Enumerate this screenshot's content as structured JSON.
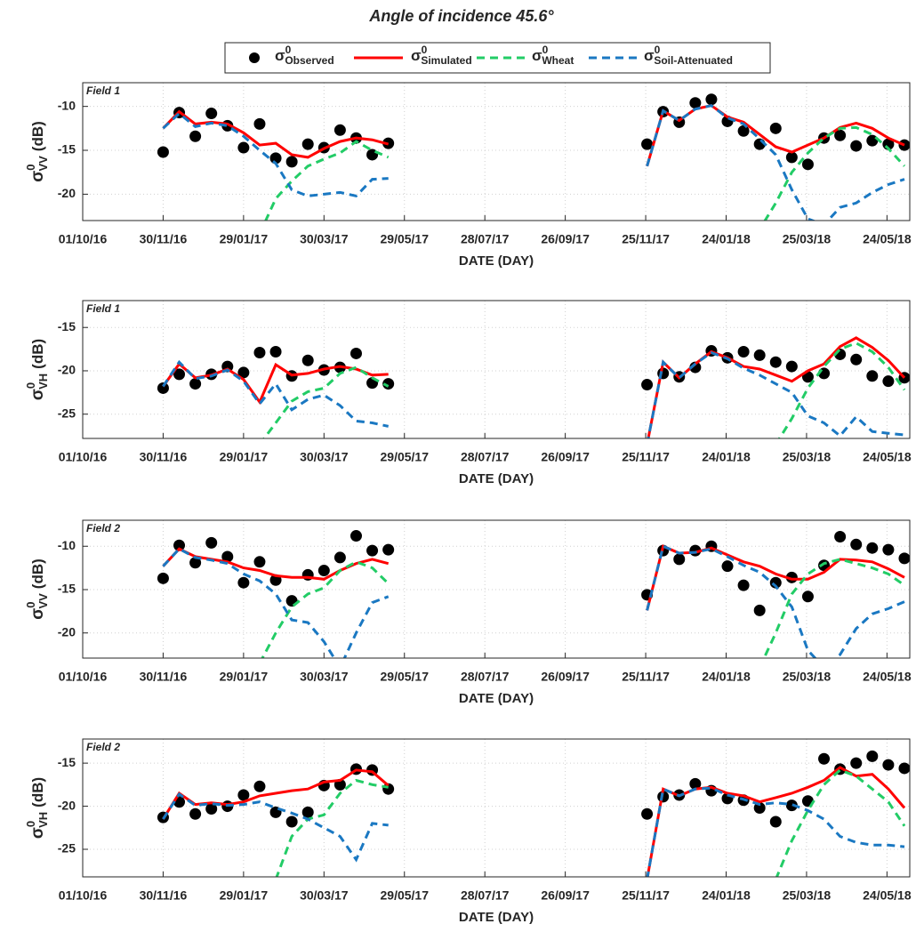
{
  "title": "Angle of incidence 45.6°",
  "symbol": {
    "base": "σ",
    "sup": "0"
  },
  "legend": [
    {
      "name": "Observed",
      "color": "#000000",
      "style": "markers"
    },
    {
      "name": "Simulated",
      "color": "#ff0000",
      "style": "solid"
    },
    {
      "name": "Wheat",
      "color": "#22cc66",
      "style": "dashed"
    },
    {
      "name": "Soil-Attenuated",
      "color": "#1a78c2",
      "style": "dashed"
    }
  ],
  "chart_data": [
    {
      "type": "line",
      "field_label": "Field 1",
      "xlabel": "DATE (DAY)",
      "ylabel": {
        "base": "σ",
        "sup": "0",
        "sub": "VV",
        "rest": "(dB)"
      },
      "grid": true,
      "xlim": [
        "2016-10-01",
        "2018-06-10"
      ],
      "xticks": [
        {
          "value": "2016-10-01",
          "label": "01/10/16"
        },
        {
          "value": "2016-11-30",
          "label": "30/11/16"
        },
        {
          "value": "2017-01-29",
          "label": "29/01/17"
        },
        {
          "value": "2017-03-30",
          "label": "30/03/17"
        },
        {
          "value": "2017-05-29",
          "label": "29/05/17"
        },
        {
          "value": "2017-07-28",
          "label": "28/07/17"
        },
        {
          "value": "2017-09-26",
          "label": "26/09/17"
        },
        {
          "value": "2017-11-25",
          "label": "25/11/17"
        },
        {
          "value": "2018-01-24",
          "label": "24/01/18"
        },
        {
          "value": "2018-03-25",
          "label": "25/03/18"
        },
        {
          "value": "2018-05-24",
          "label": "24/05/18"
        }
      ],
      "ylim": [
        -23,
        -7.3
      ],
      "yticks": [
        -20,
        -15,
        -10
      ],
      "x": [
        "2016-11-30",
        "2016-12-12",
        "2016-12-24",
        "2017-01-05",
        "2017-01-17",
        "2017-01-29",
        "2017-02-10",
        "2017-02-22",
        "2017-03-06",
        "2017-03-18",
        "2017-03-30",
        "2017-04-11",
        "2017-04-23",
        "2017-05-05",
        "2017-05-17",
        "2017-08-20",
        "2017-11-26",
        "2017-12-08",
        "2017-12-20",
        "2018-01-01",
        "2018-01-13",
        "2018-01-25",
        "2018-02-06",
        "2018-02-18",
        "2018-03-02",
        "2018-03-14",
        "2018-03-26",
        "2018-04-07",
        "2018-04-19",
        "2018-05-01",
        "2018-05-13",
        "2018-05-25",
        "2018-06-06"
      ],
      "series": [
        {
          "values": [
            -15.2,
            -10.7,
            -13.4,
            -10.8,
            -12.2,
            -14.7,
            -12.0,
            -15.9,
            -16.3,
            -14.3,
            -14.7,
            -12.7,
            -13.6,
            -15.5,
            -14.2,
            null,
            -14.3,
            -10.6,
            -11.8,
            -9.6,
            -9.2,
            -11.7,
            -12.8,
            -14.3,
            -12.5,
            -15.8,
            -16.6,
            -13.6,
            -13.3,
            -14.5,
            -13.9,
            -14.3,
            -14.4
          ]
        },
        {
          "values": [
            -12.5,
            -10.6,
            -12.0,
            -11.8,
            -12.0,
            -13.0,
            -14.4,
            -14.2,
            -15.5,
            -15.8,
            -14.8,
            -14.0,
            -13.6,
            -13.8,
            -14.3,
            null,
            -16.8,
            -10.5,
            -11.6,
            -10.3,
            -9.9,
            -11.2,
            -11.8,
            -13.2,
            -14.6,
            -15.2,
            -14.4,
            -13.6,
            -12.4,
            -11.9,
            -12.5,
            -13.6,
            -14.4
          ]
        },
        {
          "values": [
            null,
            null,
            null,
            null,
            null,
            null,
            -24.5,
            -20.5,
            -18.5,
            -16.8,
            -16.0,
            -15.3,
            -14.0,
            -15.0,
            -15.8,
            null,
            null,
            null,
            null,
            null,
            null,
            null,
            -27.0,
            -24.0,
            -21.0,
            -17.5,
            -15.3,
            -13.6,
            -12.5,
            -12.4,
            -13.2,
            -14.8,
            -16.8
          ]
        },
        {
          "values": [
            -12.5,
            -10.8,
            -12.3,
            -11.9,
            -12.2,
            -13.4,
            -15.0,
            -16.5,
            -19.5,
            -20.2,
            -20.0,
            -19.8,
            -20.2,
            -18.3,
            -18.2,
            null,
            -16.8,
            -10.5,
            -11.6,
            -10.3,
            -9.9,
            -11.3,
            -12.0,
            -13.7,
            -15.5,
            -19.5,
            -22.8,
            -23.5,
            -21.5,
            -21.0,
            -19.8,
            -18.9,
            -18.3
          ]
        }
      ]
    },
    {
      "type": "line",
      "field_label": "Field 1",
      "xlabel": "DATE (DAY)",
      "ylabel": {
        "base": "σ",
        "sup": "0",
        "sub": "VH",
        "rest": "(dB)"
      },
      "grid": true,
      "xlim": [
        "2016-10-01",
        "2018-06-10"
      ],
      "xticks": [
        {
          "value": "2016-10-01",
          "label": "01/10/16"
        },
        {
          "value": "2016-11-30",
          "label": "30/11/16"
        },
        {
          "value": "2017-01-29",
          "label": "29/01/17"
        },
        {
          "value": "2017-03-30",
          "label": "30/03/17"
        },
        {
          "value": "2017-05-29",
          "label": "29/05/17"
        },
        {
          "value": "2017-07-28",
          "label": "28/07/17"
        },
        {
          "value": "2017-09-26",
          "label": "26/09/17"
        },
        {
          "value": "2017-11-25",
          "label": "25/11/17"
        },
        {
          "value": "2018-01-24",
          "label": "24/01/18"
        },
        {
          "value": "2018-03-25",
          "label": "25/03/18"
        },
        {
          "value": "2018-05-24",
          "label": "24/05/18"
        }
      ],
      "ylim": [
        -27.8,
        -11.9
      ],
      "yticks": [
        -25,
        -20,
        -15
      ],
      "x": [
        "2016-11-30",
        "2016-12-12",
        "2016-12-24",
        "2017-01-05",
        "2017-01-17",
        "2017-01-29",
        "2017-02-10",
        "2017-02-22",
        "2017-03-06",
        "2017-03-18",
        "2017-03-30",
        "2017-04-11",
        "2017-04-23",
        "2017-05-05",
        "2017-05-17",
        "2017-08-20",
        "2017-11-26",
        "2017-12-08",
        "2017-12-20",
        "2018-01-01",
        "2018-01-13",
        "2018-01-25",
        "2018-02-06",
        "2018-02-18",
        "2018-03-02",
        "2018-03-14",
        "2018-03-26",
        "2018-04-07",
        "2018-04-19",
        "2018-05-01",
        "2018-05-13",
        "2018-05-25",
        "2018-06-06"
      ],
      "series": [
        {
          "values": [
            -22.0,
            -20.4,
            -21.5,
            -20.4,
            -19.5,
            -20.2,
            -17.9,
            -17.8,
            -20.6,
            -18.8,
            -19.9,
            -19.6,
            -18.0,
            -21.4,
            -21.5,
            null,
            -21.6,
            -20.3,
            -20.7,
            -19.6,
            -17.7,
            -18.5,
            -17.8,
            -18.2,
            -19.0,
            -19.5,
            -20.7,
            -20.3,
            -18.1,
            -18.7,
            -20.6,
            -21.2,
            -20.8
          ]
        },
        {
          "values": [
            -21.8,
            -19.2,
            -20.8,
            -20.5,
            -19.8,
            -21.0,
            -23.6,
            -19.3,
            -20.5,
            -20.3,
            -19.8,
            -19.5,
            -19.8,
            -20.5,
            -20.4,
            null,
            -28.5,
            -19.0,
            -20.8,
            -19.2,
            -17.8,
            -18.5,
            -19.5,
            -19.8,
            -20.5,
            -21.2,
            -20.0,
            -19.2,
            -17.2,
            -16.2,
            -17.3,
            -18.8,
            -20.8
          ]
        },
        {
          "values": [
            null,
            null,
            null,
            null,
            null,
            null,
            -28.5,
            -26.0,
            -23.5,
            -22.4,
            -22.0,
            -20.3,
            -19.6,
            -20.8,
            -21.8,
            null,
            null,
            null,
            null,
            null,
            null,
            null,
            null,
            null,
            -28.5,
            -25.5,
            -22.0,
            -19.5,
            -17.5,
            -16.8,
            -17.8,
            -19.6,
            -22.2
          ]
        },
        {
          "values": [
            -21.8,
            -19.0,
            -20.9,
            -20.6,
            -19.9,
            -21.2,
            -23.8,
            -21.5,
            -24.5,
            -23.3,
            -22.8,
            -24.0,
            -25.8,
            -26.0,
            -26.4,
            null,
            -28.5,
            -19.0,
            -20.8,
            -19.2,
            -17.9,
            -18.6,
            -19.7,
            -20.5,
            -21.5,
            -22.5,
            -25.2,
            -26.0,
            -27.5,
            -25.3,
            -27.0,
            -27.2,
            -27.4
          ]
        }
      ]
    },
    {
      "type": "line",
      "field_label": "Field 2",
      "xlabel": "DATE (DAY)",
      "ylabel": {
        "base": "σ",
        "sup": "0",
        "sub": "VV",
        "rest": "(dB)"
      },
      "grid": true,
      "xlim": [
        "2016-10-01",
        "2018-06-10"
      ],
      "xticks": [
        {
          "value": "2016-10-01",
          "label": "01/10/16"
        },
        {
          "value": "2016-11-30",
          "label": "30/11/16"
        },
        {
          "value": "2017-01-29",
          "label": "29/01/17"
        },
        {
          "value": "2017-03-30",
          "label": "30/03/17"
        },
        {
          "value": "2017-05-29",
          "label": "29/05/17"
        },
        {
          "value": "2017-07-28",
          "label": "28/07/17"
        },
        {
          "value": "2017-09-26",
          "label": "26/09/17"
        },
        {
          "value": "2017-11-25",
          "label": "25/11/17"
        },
        {
          "value": "2018-01-24",
          "label": "24/01/18"
        },
        {
          "value": "2018-03-25",
          "label": "25/03/18"
        },
        {
          "value": "2018-05-24",
          "label": "24/05/18"
        }
      ],
      "ylim": [
        -22.9,
        -7.0
      ],
      "yticks": [
        -20,
        -15,
        -10
      ],
      "x": [
        "2016-11-30",
        "2016-12-12",
        "2016-12-24",
        "2017-01-05",
        "2017-01-17",
        "2017-01-29",
        "2017-02-10",
        "2017-02-22",
        "2017-03-06",
        "2017-03-18",
        "2017-03-30",
        "2017-04-11",
        "2017-04-23",
        "2017-05-05",
        "2017-05-17",
        "2017-08-20",
        "2017-11-26",
        "2017-12-08",
        "2017-12-20",
        "2018-01-01",
        "2018-01-13",
        "2018-01-25",
        "2018-02-06",
        "2018-02-18",
        "2018-03-02",
        "2018-03-14",
        "2018-03-26",
        "2018-04-07",
        "2018-04-19",
        "2018-05-01",
        "2018-05-13",
        "2018-05-25",
        "2018-06-06"
      ],
      "series": [
        {
          "values": [
            -13.7,
            -9.9,
            -11.9,
            -9.6,
            -11.2,
            -14.2,
            -11.8,
            -13.9,
            -16.3,
            -13.3,
            -12.8,
            -11.3,
            -8.8,
            -10.5,
            -10.4,
            null,
            -15.6,
            -10.5,
            -11.5,
            -10.5,
            -10.0,
            -12.3,
            -14.5,
            -17.4,
            -14.2,
            -13.6,
            -15.8,
            -12.2,
            -8.9,
            -9.8,
            -10.2,
            -10.4,
            -11.4
          ]
        },
        {
          "values": [
            -12.3,
            -10.3,
            -11.2,
            -11.5,
            -11.8,
            -12.5,
            -12.8,
            -13.4,
            -13.6,
            -13.6,
            -13.8,
            -12.8,
            -12.0,
            -11.5,
            -12.0,
            null,
            -17.4,
            -10.0,
            -10.8,
            -10.7,
            -10.2,
            -11.0,
            -11.8,
            -12.3,
            -13.2,
            -13.8,
            -13.8,
            -13.0,
            -11.5,
            -11.6,
            -11.8,
            -12.6,
            -13.6
          ]
        },
        {
          "values": [
            null,
            null,
            null,
            null,
            null,
            null,
            -23.5,
            -20.0,
            -17.0,
            -15.5,
            -14.8,
            -12.8,
            -11.8,
            -12.5,
            -14.3,
            null,
            null,
            null,
            null,
            null,
            null,
            null,
            null,
            -24.0,
            -20.0,
            -15.5,
            -13.2,
            -12.0,
            -11.5,
            -12.0,
            -12.5,
            -13.2,
            -14.5
          ]
        },
        {
          "values": [
            -12.3,
            -10.3,
            -11.3,
            -11.6,
            -12.0,
            -13.2,
            -14.0,
            -15.5,
            -18.5,
            -18.8,
            -21.0,
            -24.0,
            -20.0,
            -16.5,
            -15.8,
            null,
            -17.4,
            -10.0,
            -10.8,
            -10.7,
            -10.3,
            -11.2,
            -12.2,
            -13.0,
            -14.6,
            -17.0,
            -22.0,
            -24.0,
            -22.5,
            -19.5,
            -17.8,
            -17.2,
            -16.4
          ]
        }
      ]
    },
    {
      "type": "line",
      "field_label": "Field 2",
      "xlabel": "DATE (DAY)",
      "ylabel": {
        "base": "σ",
        "sup": "0",
        "sub": "VH",
        "rest": "(dB)"
      },
      "grid": true,
      "xlim": [
        "2016-10-01",
        "2018-06-10"
      ],
      "xticks": [
        {
          "value": "2016-10-01",
          "label": "01/10/16"
        },
        {
          "value": "2016-11-30",
          "label": "30/11/16"
        },
        {
          "value": "2017-01-29",
          "label": "29/01/17"
        },
        {
          "value": "2017-03-30",
          "label": "30/03/17"
        },
        {
          "value": "2017-05-29",
          "label": "29/05/17"
        },
        {
          "value": "2017-07-28",
          "label": "28/07/17"
        },
        {
          "value": "2017-09-26",
          "label": "26/09/17"
        },
        {
          "value": "2017-11-25",
          "label": "25/11/17"
        },
        {
          "value": "2018-01-24",
          "label": "24/01/18"
        },
        {
          "value": "2018-03-25",
          "label": "25/03/18"
        },
        {
          "value": "2018-05-24",
          "label": "24/05/18"
        }
      ],
      "ylim": [
        -28.2,
        -12.2
      ],
      "yticks": [
        -25,
        -20,
        -15
      ],
      "x": [
        "2016-11-30",
        "2016-12-12",
        "2016-12-24",
        "2017-01-05",
        "2017-01-17",
        "2017-01-29",
        "2017-02-10",
        "2017-02-22",
        "2017-03-06",
        "2017-03-18",
        "2017-03-30",
        "2017-04-11",
        "2017-04-23",
        "2017-05-05",
        "2017-05-17",
        "2017-08-20",
        "2017-11-26",
        "2017-12-08",
        "2017-12-20",
        "2018-01-01",
        "2018-01-13",
        "2018-01-25",
        "2018-02-06",
        "2018-02-18",
        "2018-03-02",
        "2018-03-14",
        "2018-03-26",
        "2018-04-07",
        "2018-04-19",
        "2018-05-01",
        "2018-05-13",
        "2018-05-25",
        "2018-06-06"
      ],
      "series": [
        {
          "values": [
            -21.3,
            -19.5,
            -20.9,
            -20.3,
            -20.0,
            -18.7,
            -17.7,
            -20.7,
            -21.8,
            -20.7,
            -17.6,
            -17.5,
            -15.7,
            -15.8,
            -18.0,
            null,
            -20.9,
            -18.9,
            -18.7,
            -17.4,
            -18.2,
            -19.1,
            -19.3,
            -20.2,
            -21.8,
            -19.9,
            -19.4,
            -14.5,
            -15.7,
            -15.0,
            -14.2,
            -15.2,
            -15.6
          ]
        },
        {
          "values": [
            -21.5,
            -18.5,
            -19.8,
            -19.6,
            -19.8,
            -19.5,
            -18.8,
            -18.5,
            -18.2,
            -18.0,
            -17.2,
            -17.0,
            -15.8,
            -16.0,
            -17.6,
            null,
            -28.5,
            -18.0,
            -18.8,
            -18.0,
            -17.8,
            -18.5,
            -18.8,
            -19.5,
            -19.0,
            -18.5,
            -17.8,
            -17.0,
            -15.5,
            -16.5,
            -16.3,
            -18.0,
            -20.2
          ]
        },
        {
          "values": [
            null,
            null,
            null,
            null,
            null,
            null,
            null,
            -28.5,
            -23.5,
            -21.5,
            -21.0,
            -18.5,
            -17.0,
            -17.5,
            -17.8,
            null,
            null,
            null,
            null,
            null,
            null,
            null,
            null,
            null,
            -28.5,
            -24.0,
            -20.5,
            -17.5,
            -15.8,
            -16.5,
            -18.0,
            -19.5,
            -22.3
          ]
        },
        {
          "values": [
            -21.5,
            -18.6,
            -19.9,
            -19.7,
            -19.9,
            -19.8,
            -19.5,
            -20.2,
            -20.8,
            -21.5,
            -22.5,
            -23.5,
            -26.2,
            -22.0,
            -22.2,
            null,
            -28.5,
            -18.0,
            -18.8,
            -18.0,
            -17.9,
            -18.7,
            -19.2,
            -19.8,
            -19.6,
            -19.8,
            -20.5,
            -21.5,
            -23.5,
            -24.2,
            -24.5,
            -24.5,
            -24.7
          ]
        }
      ]
    }
  ]
}
